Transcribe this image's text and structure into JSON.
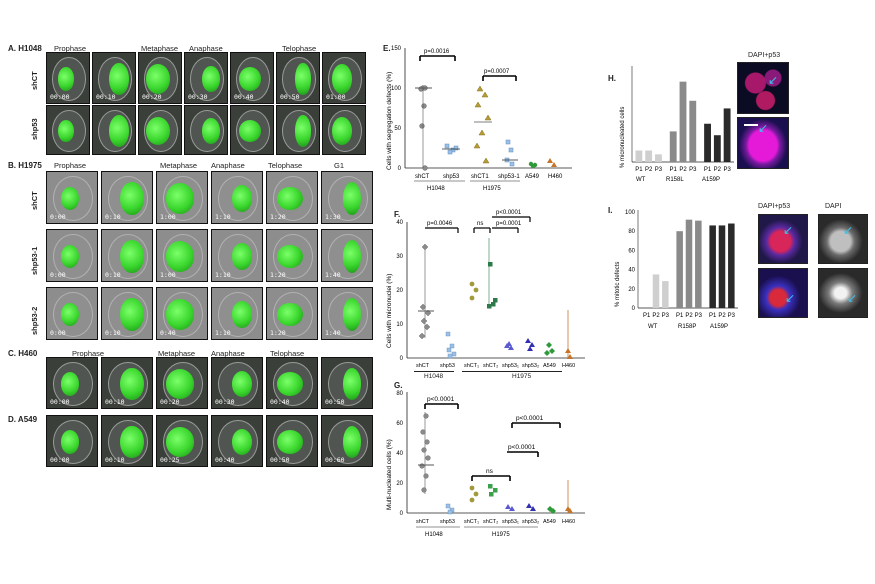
{
  "panelA": {
    "label": "A. H1048",
    "phases": [
      "Prophase",
      "Metaphase",
      "Anaphase",
      "Telophase"
    ],
    "rows": [
      {
        "label": "shCT",
        "times": [
          "00:00",
          "00:10",
          "00:20",
          "00:30",
          "00:40",
          "00:50",
          "01:00"
        ]
      },
      {
        "label": "shp53",
        "times": [
          "",
          "",
          "",
          "",
          "",
          "",
          ""
        ]
      }
    ]
  },
  "panelB": {
    "label": "B. H1975",
    "phases": [
      "Prophase",
      "Metaphase",
      "Anaphase",
      "Telophase",
      "G1"
    ],
    "rows": [
      {
        "label": "shCT",
        "times": [
          "0:00",
          "0:10",
          "1:00",
          "1:10",
          "1:20",
          "1:30"
        ]
      },
      {
        "label": "shp53-1",
        "times": [
          "0:00",
          "0:10",
          "1:00",
          "1:10",
          "1:20",
          "1:40"
        ]
      },
      {
        "label": "shp53-2",
        "times": [
          "0:00",
          "0:10",
          "0:40",
          "1:10",
          "1:20",
          "1:40"
        ]
      }
    ]
  },
  "panelC": {
    "label": "C. H460",
    "phases": [
      "Prophase",
      "Metaphase",
      "Anaphase",
      "Telophase"
    ],
    "times": [
      "00:00",
      "00:10",
      "00:20",
      "00:30",
      "00:40",
      "00:50"
    ]
  },
  "panelD": {
    "label": "D. A549",
    "times": [
      "00:00",
      "00:10",
      "00:25",
      "00:40",
      "00:50",
      "00:60"
    ]
  },
  "panelE": {
    "label": "E.",
    "ylabel": "Cells with segregation defects (%)",
    "yticks": [
      "0",
      "50",
      "100",
      "150"
    ],
    "xlabels": [
      "shCT",
      "shp53",
      "shCT1",
      "shp53-1",
      "A549",
      "H460"
    ],
    "groups": [
      "H1048",
      "H1975"
    ],
    "pvals": [
      "p=0.0016",
      "p=0.0007"
    ]
  },
  "panelF": {
    "label": "F.",
    "ylabel": "Cells with micronuclei (%)",
    "yticks": [
      "0",
      "10",
      "20",
      "30",
      "40"
    ],
    "xlabels": [
      "shCT",
      "shp53",
      "shCT₁",
      "shCT₂",
      "shp53₁",
      "shp53₂",
      "A549",
      "H460"
    ],
    "groups": [
      "H1048",
      "H1975"
    ],
    "pvals": [
      "p=0.0046",
      "ns",
      "p<0.0001",
      "p=0.0001"
    ]
  },
  "panelG": {
    "label": "G.",
    "ylabel": "Multi-nucleated cells (%)",
    "yticks": [
      "0",
      "20",
      "40",
      "60",
      "80"
    ],
    "xlabels": [
      "shCT",
      "shp53",
      "shCT₁",
      "shCT₂",
      "shp53₁",
      "shp53₂",
      "A549",
      "H460"
    ],
    "groups": [
      "H1048",
      "H1975"
    ],
    "pvals": [
      "p<0.0001",
      "ns",
      "p<0.0001",
      "p<0.0001"
    ]
  },
  "panelH": {
    "label": "H.",
    "ylabel": "% micronucleated cells",
    "image_label": "DAPI+p53",
    "xticks": [
      "P1",
      "P2",
      "P3",
      "P1",
      "P2",
      "P3",
      "P1",
      "P2",
      "P3"
    ],
    "groups": [
      "WT",
      "R158L",
      "A159P"
    ]
  },
  "panelI": {
    "label": "I.",
    "ylabel": "% mitotic defects",
    "yticks": [
      "0",
      "20",
      "40",
      "60",
      "80",
      "100"
    ],
    "image_label_1": "DAPI+p53",
    "image_label_2": "DAPI",
    "xticks": [
      "P1",
      "P2",
      "P3",
      "P1",
      "P2",
      "P3",
      "P1",
      "P2",
      "P3"
    ],
    "groups": [
      "WT",
      "R158P",
      "A159P"
    ]
  },
  "chart_data": [
    {
      "type": "bar",
      "title": "",
      "ylabel": "% micronucleated cells",
      "categories": [
        "WT P1",
        "WT P2",
        "WT P3",
        "R158L P1",
        "R158L P2",
        "R158L P3",
        "A159P P1",
        "A159P P2",
        "A159P P3"
      ],
      "values": [
        3,
        3,
        2,
        8,
        21,
        16,
        10,
        7,
        14
      ],
      "colors": [
        "#cfcfcf",
        "#cfcfcf",
        "#cfcfcf",
        "#8a8a8a",
        "#8a8a8a",
        "#8a8a8a",
        "#2a2a2a",
        "#2a2a2a",
        "#2a2a2a"
      ]
    },
    {
      "type": "bar",
      "title": "",
      "ylabel": "% mitotic defects",
      "categories": [
        "WT P1",
        "WT P2",
        "WT P3",
        "R158P P1",
        "R158P P2",
        "R158P P3",
        "A159P P1",
        "A159P P2",
        "A159P P3"
      ],
      "values": [
        0,
        35,
        28,
        80,
        92,
        91,
        86,
        86,
        88
      ],
      "ylim": [
        0,
        100
      ],
      "colors": [
        "#cfcfcf",
        "#cfcfcf",
        "#cfcfcf",
        "#8a8a8a",
        "#8a8a8a",
        "#8a8a8a",
        "#2a2a2a",
        "#2a2a2a",
        "#2a2a2a"
      ]
    }
  ]
}
